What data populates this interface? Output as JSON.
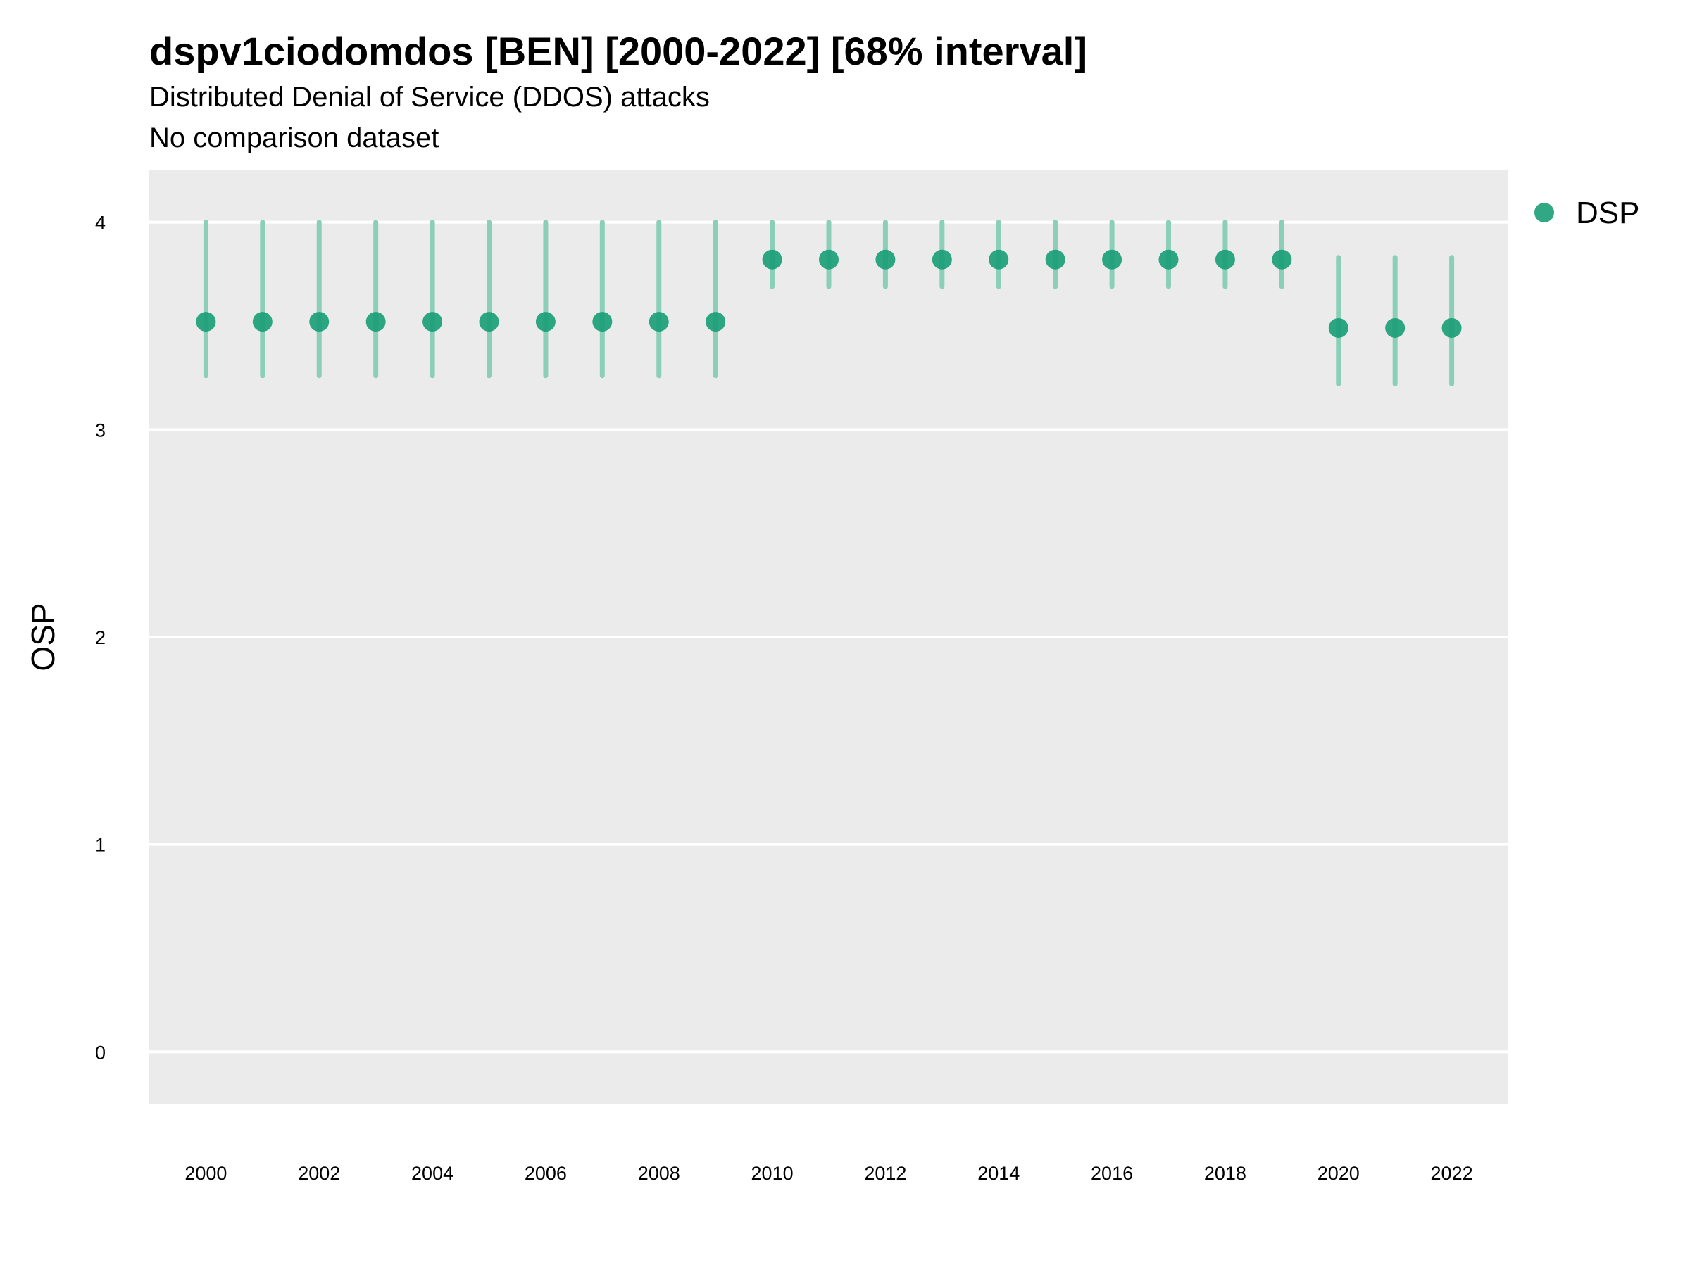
{
  "chart_data": {
    "type": "scatter",
    "title": "dspv1ciodomdos [BEN] [2000-2022] [68% interval]",
    "subtitle": "Distributed Denial of Service (DDOS) attacks",
    "caption": "No comparison dataset",
    "xlabel": "",
    "ylabel": "OSP",
    "xlim": [
      1999,
      2023
    ],
    "ylim": [
      -0.25,
      4.25
    ],
    "x_ticks": [
      2000,
      2002,
      2004,
      2006,
      2008,
      2010,
      2012,
      2014,
      2016,
      2018,
      2020,
      2022
    ],
    "y_ticks": [
      0,
      1,
      2,
      3,
      4
    ],
    "grid": true,
    "legend_position": "right",
    "colors": {
      "point": "#1b9e77",
      "interval": "#8ccfb9",
      "panel": "#ebebeb",
      "grid": "#ffffff"
    },
    "series": [
      {
        "name": "DSP",
        "x": [
          2000,
          2001,
          2002,
          2003,
          2004,
          2005,
          2006,
          2007,
          2008,
          2009,
          2010,
          2011,
          2012,
          2013,
          2014,
          2015,
          2016,
          2017,
          2018,
          2019,
          2020,
          2021,
          2022
        ],
        "y": [
          3.52,
          3.52,
          3.52,
          3.52,
          3.52,
          3.52,
          3.52,
          3.52,
          3.52,
          3.52,
          3.82,
          3.82,
          3.82,
          3.82,
          3.82,
          3.82,
          3.82,
          3.82,
          3.82,
          3.82,
          3.49,
          3.49,
          3.49
        ],
        "lower": [
          3.26,
          3.26,
          3.26,
          3.26,
          3.26,
          3.26,
          3.26,
          3.26,
          3.26,
          3.26,
          3.69,
          3.69,
          3.69,
          3.69,
          3.69,
          3.69,
          3.69,
          3.69,
          3.69,
          3.69,
          3.22,
          3.22,
          3.22
        ],
        "upper": [
          4.0,
          4.0,
          4.0,
          4.0,
          4.0,
          4.0,
          4.0,
          4.0,
          4.0,
          4.0,
          4.0,
          4.0,
          4.0,
          4.0,
          4.0,
          4.0,
          4.0,
          4.0,
          4.0,
          4.0,
          3.83,
          3.83,
          3.83
        ]
      }
    ]
  }
}
